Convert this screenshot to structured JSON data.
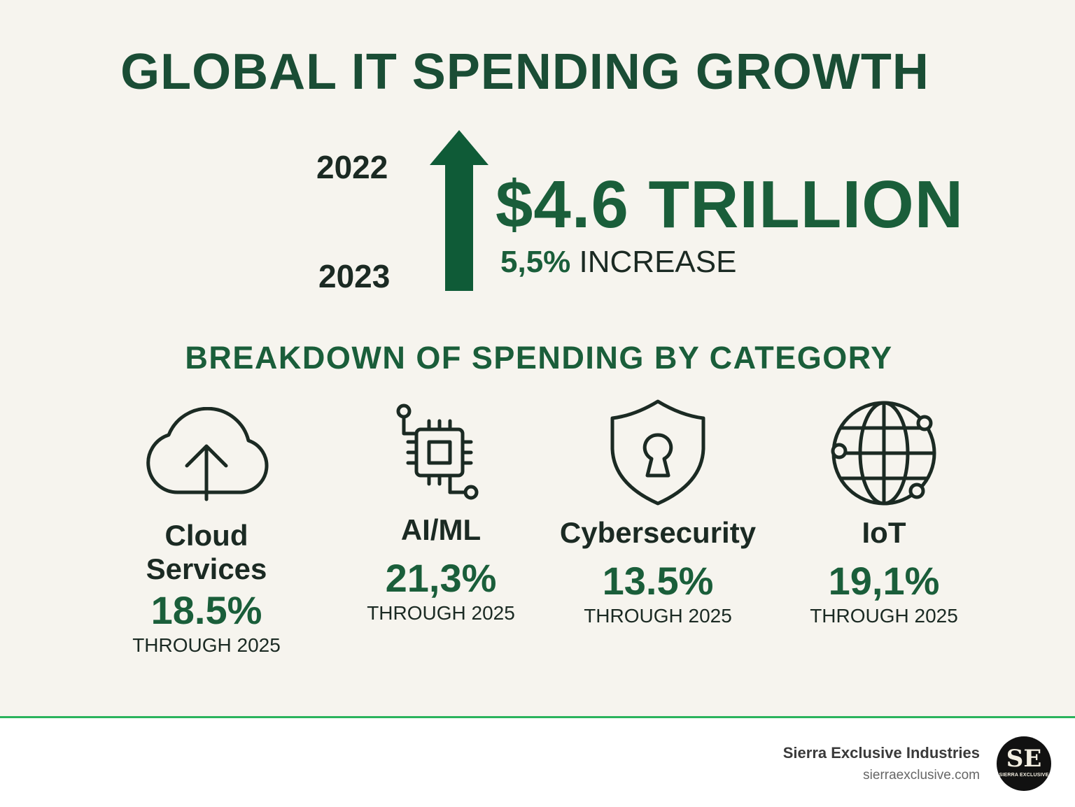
{
  "colors": {
    "background": "#f6f4ee",
    "accent_green": "#1a5e3a",
    "title_green": "#1a4d35",
    "text_dark": "#1b2a23",
    "footer_line": "#2bb35c"
  },
  "title": "GLOBAL IT SPENDING GROWTH",
  "growth": {
    "year_from": "2022",
    "year_to": "2023",
    "amount": "$4.6 TRILLION",
    "increase_pct": "5,5%",
    "increase_label": "INCREASE",
    "arrow_icon": "up-arrow-icon"
  },
  "breakdown": {
    "title": "BREAKDOWN OF SPENDING BY CATEGORY",
    "categories": [
      {
        "name_line1": "Cloud",
        "name_line2": "Services",
        "rate": "18.5%",
        "note": "THROUGH 2025",
        "icon": "cloud-upload-icon"
      },
      {
        "name_line1": "AI/ML",
        "rate": "21,3%",
        "note": "THROUGH 2025",
        "icon": "chip-icon"
      },
      {
        "name_line1": "Cybersecurity",
        "rate": "13.5%",
        "note": "THROUGH 2025",
        "icon": "shield-lock-icon"
      },
      {
        "name_line1": "IoT",
        "rate": "19,1%",
        "note": "THROUGH 2025",
        "icon": "globe-network-icon"
      }
    ]
  },
  "footer": {
    "company": "Sierra Exclusive Industries",
    "url": "sierraexclusive.com",
    "logo_monogram": "SE",
    "logo_subtext": "SIERRA EXCLUSIVE"
  }
}
